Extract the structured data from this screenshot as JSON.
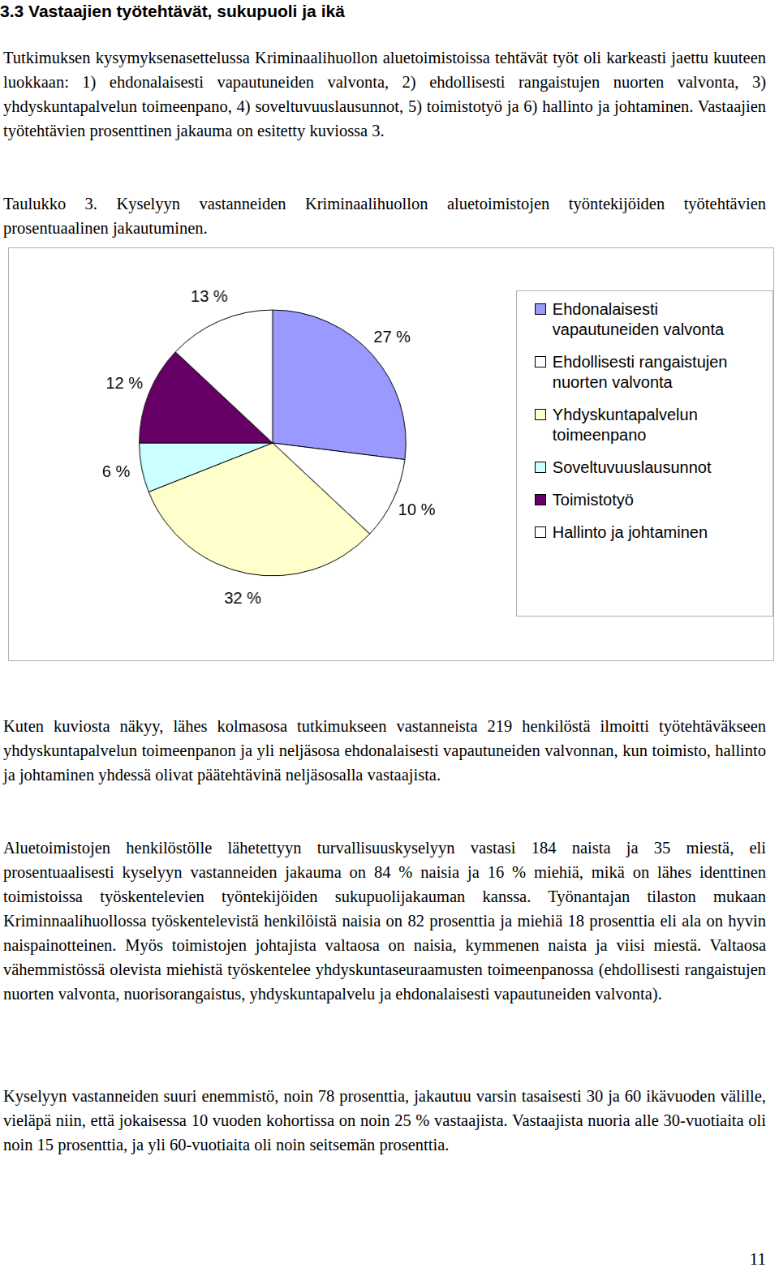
{
  "heading": "3.3 Vastaajien työtehtävät, sukupuoli ja ikä",
  "paragraphs": [
    "Tutkimuksen kysymyksenasettelussa Kriminaalihuollon aluetoimistoissa tehtävät työt oli karkeasti jaettu kuuteen luokkaan: 1) ehdonalaisesti vapautuneiden valvonta, 2) ehdollisesti rangaistujen nuorten valvonta, 3) yhdyskuntapalvelun toimeenpano, 4) soveltuvuuslausunnot, 5) toimistotyö ja 6) hallinto ja johtaminen. Vastaajien työtehtävien prosenttinen jakauma on esitetty kuviossa 3.",
    "Kuten kuviosta näkyy, lähes kolmasosa tutkimukseen vastanneista 219 henkilöstä ilmoitti työtehtäväkseen yhdyskuntapalvelun toimeenpanon ja yli neljäsosa ehdonalaisesti vapautuneiden valvonnan, kun toimisto, hallinto ja johtaminen yhdessä olivat päätehtävinä neljäsosalla vastaajista.",
    "Aluetoimistojen henkilöstölle lähetettyyn turvallisuuskyselyyn vastasi 184 naista ja 35 miestä, eli prosentuaalisesti kyselyyn vastanneiden jakauma on 84 % naisia ja 16 % miehiä, mikä on lähes identtinen toimistoissa työskentelevien työntekijöiden sukupuolijakauman kanssa. Työnantajan tilaston mukaan Kriminnaalihuollossa työskentelevistä henkilöistä naisia on 82 prosenttia ja miehiä 18 prosenttia eli ala on hyvin naispainotteinen. Myös toimistojen johtajista valtaosa on naisia, kymmenen naista ja viisi miestä. Valtaosa vähemmistössä olevista miehistä työskentelee yhdyskuntaseuraamusten toimeenpanossa (ehdollisesti rangaistujen nuorten valvonta, nuorisorangaistus, yhdyskuntapalvelu ja ehdonalaisesti vapautuneiden valvonta).",
    "Kyselyyn vastanneiden suuri enemmistö, noin 78 prosenttia, jakautuu varsin tasaisesti 30 ja 60 ikävuoden välille, vieläpä niin, että jokaisessa 10 vuoden kohortissa on noin 25 % vastaajista. Vastaajista nuoria alle 30-vuotiaita oli noin 15 prosenttia, ja yli 60-vuotiaita oli noin seitsemän prosenttia."
  ],
  "caption": "Taulukko 3. Kyselyyn vastanneiden Kriminaalihuollon aluetoimistojen työntekijöiden työtehtävien prosentuaalinen jakautuminen.",
  "chart_data": {
    "type": "pie",
    "categories": [
      "Ehdonalaisesti vapautuneiden valvonta",
      "Ehdollisesti rangaistujen nuorten valvonta",
      "Yhdyskuntapalvelun toimeenpano",
      "Soveltuvuuslausunnot",
      "Toimistotyö",
      "Hallinto ja johtaminen"
    ],
    "values": [
      27,
      10,
      32,
      6,
      12,
      13
    ],
    "value_labels": [
      "27 %",
      "10 %",
      "32 %",
      "6 %",
      "12 %",
      "13 %"
    ],
    "colors": [
      "#9999ff",
      "#ffffff",
      "#ffffcc",
      "#ccffff",
      "#660066",
      "#ffffff"
    ],
    "data_labels": true,
    "legend": "right"
  },
  "page_number": "11"
}
